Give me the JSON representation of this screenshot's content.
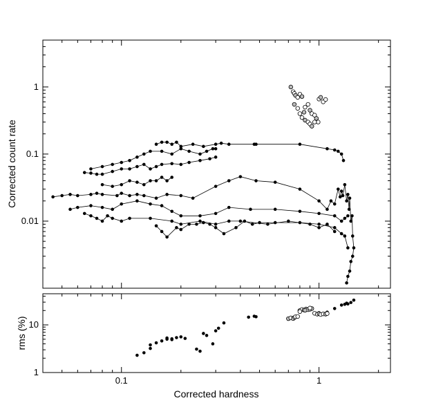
{
  "chart_data": [
    {
      "type": "scatter",
      "panel": "top",
      "xlabel": "Corrected hardness",
      "ylabel": "Corrected count rate",
      "x_scale": "log",
      "y_scale": "log",
      "xlim": [
        0.04,
        2.3
      ],
      "ylim": [
        0.001,
        5
      ],
      "y_tick_labels": [
        "1",
        "0.1",
        "0.01"
      ],
      "y_ticks": [
        1,
        0.1,
        0.01
      ],
      "x_ticks": [
        0.1,
        1
      ],
      "series": [
        {
          "style": "filled-line",
          "x": [
            0.045,
            0.05,
            0.055,
            0.06,
            0.07,
            0.075,
            0.08,
            0.095,
            0.1,
            0.11,
            0.12,
            0.13,
            0.15,
            0.17,
            0.2,
            0.23,
            0.3,
            0.35,
            0.4,
            0.48,
            0.6,
            0.8,
            1.0,
            1.1,
            1.15,
            1.2,
            1.25,
            1.28,
            1.3,
            1.32,
            1.35,
            1.38,
            1.4,
            1.42,
            1.43,
            1.45,
            1.47,
            1.48,
            1.5,
            1.48,
            1.45,
            1.43,
            1.4,
            1.38
          ],
          "y": [
            0.023,
            0.024,
            0.025,
            0.024,
            0.025,
            0.026,
            0.025,
            0.024,
            0.026,
            0.024,
            0.025,
            0.024,
            0.022,
            0.025,
            0.024,
            0.022,
            0.033,
            0.04,
            0.046,
            0.04,
            0.038,
            0.03,
            0.02,
            0.015,
            0.02,
            0.018,
            0.03,
            0.023,
            0.028,
            0.024,
            0.035,
            0.02,
            0.025,
            0.015,
            0.022,
            0.01,
            0.012,
            0.006,
            0.004,
            0.003,
            0.0025,
            0.0018,
            0.0015,
            0.0012
          ]
        },
        {
          "style": "filled-line",
          "x": [
            0.15,
            0.16,
            0.17,
            0.18,
            0.19,
            0.2,
            0.23,
            0.26,
            0.3,
            0.32,
            0.35,
            0.47,
            0.48,
            0.8,
            1.1,
            1.2,
            1.25,
            1.3,
            1.33
          ],
          "y": [
            0.14,
            0.15,
            0.15,
            0.14,
            0.15,
            0.13,
            0.14,
            0.13,
            0.14,
            0.145,
            0.14,
            0.14,
            0.14,
            0.14,
            0.12,
            0.115,
            0.11,
            0.1,
            0.08
          ]
        },
        {
          "style": "filled-line",
          "x": [
            0.07,
            0.08,
            0.09,
            0.1,
            0.11,
            0.12,
            0.13,
            0.14,
            0.16,
            0.18,
            0.2,
            0.22,
            0.25,
            0.27,
            0.29,
            0.3
          ],
          "y": [
            0.06,
            0.065,
            0.07,
            0.075,
            0.08,
            0.09,
            0.1,
            0.11,
            0.11,
            0.1,
            0.12,
            0.11,
            0.1,
            0.11,
            0.12,
            0.12
          ]
        },
        {
          "style": "filled-line",
          "x": [
            0.065,
            0.07,
            0.075,
            0.08,
            0.09,
            0.1,
            0.11,
            0.12,
            0.13,
            0.14,
            0.15,
            0.16,
            0.18,
            0.2,
            0.22,
            0.25,
            0.28,
            0.3
          ],
          "y": [
            0.053,
            0.052,
            0.05,
            0.05,
            0.055,
            0.06,
            0.06,
            0.065,
            0.07,
            0.06,
            0.065,
            0.07,
            0.072,
            0.07,
            0.075,
            0.08,
            0.085,
            0.09
          ]
        },
        {
          "style": "filled-line",
          "x": [
            0.08,
            0.09,
            0.1,
            0.11,
            0.12,
            0.13,
            0.14,
            0.15,
            0.16,
            0.17,
            0.18
          ],
          "y": [
            0.035,
            0.033,
            0.035,
            0.04,
            0.038,
            0.035,
            0.04,
            0.04,
            0.045,
            0.04,
            0.045
          ]
        },
        {
          "style": "filled-line",
          "x": [
            0.055,
            0.06,
            0.07,
            0.08,
            0.09,
            0.1,
            0.12,
            0.14,
            0.16,
            0.18,
            0.2,
            0.25,
            0.3,
            0.35,
            0.45,
            0.6,
            0.8,
            1.0,
            1.2,
            1.3,
            1.35,
            1.4
          ],
          "y": [
            0.015,
            0.016,
            0.017,
            0.016,
            0.015,
            0.018,
            0.02,
            0.018,
            0.017,
            0.014,
            0.012,
            0.012,
            0.013,
            0.016,
            0.015,
            0.015,
            0.014,
            0.013,
            0.012,
            0.01,
            0.011,
            0.012
          ]
        },
        {
          "style": "filled-line",
          "x": [
            0.065,
            0.07,
            0.075,
            0.08,
            0.085,
            0.09,
            0.1,
            0.11,
            0.14,
            0.18,
            0.2,
            0.25,
            0.3,
            0.35,
            0.4,
            0.55,
            0.7,
            0.9,
            1.0,
            1.1,
            1.2
          ],
          "y": [
            0.013,
            0.012,
            0.011,
            0.01,
            0.012,
            0.011,
            0.01,
            0.011,
            0.011,
            0.01,
            0.009,
            0.01,
            0.009,
            0.01,
            0.01,
            0.009,
            0.01,
            0.009,
            0.008,
            0.009,
            0.007
          ]
        },
        {
          "style": "filled-line",
          "x": [
            0.15,
            0.16,
            0.17,
            0.19,
            0.2,
            0.22,
            0.24,
            0.26,
            0.28,
            0.3,
            0.33,
            0.38,
            0.42,
            0.46,
            0.5,
            0.6,
            0.8,
            1.0,
            1.2,
            1.3,
            1.35,
            1.4
          ],
          "y": [
            0.0085,
            0.007,
            0.0058,
            0.008,
            0.0075,
            0.009,
            0.009,
            0.0095,
            0.009,
            0.008,
            0.0065,
            0.008,
            0.01,
            0.009,
            0.0095,
            0.0095,
            0.0095,
            0.009,
            0.008,
            0.0065,
            0.006,
            0.004
          ]
        },
        {
          "style": "open",
          "x": [
            0.72,
            0.74,
            0.75,
            0.76,
            0.78,
            0.8,
            0.82,
            0.85,
            0.88,
            0.9,
            0.92,
            0.95,
            0.97,
            0.99,
            1.0,
            1.02,
            1.05,
            1.08,
            0.75,
            0.8,
            0.82,
            0.85,
            0.88,
            0.9,
            0.92,
            0.95,
            0.78,
            0.84
          ],
          "y": [
            1.0,
            0.85,
            0.8,
            0.75,
            0.7,
            0.78,
            0.72,
            0.5,
            0.55,
            0.45,
            0.4,
            0.38,
            0.34,
            0.3,
            0.66,
            0.7,
            0.6,
            0.65,
            0.55,
            0.4,
            0.35,
            0.32,
            0.3,
            0.28,
            0.26,
            0.3,
            0.48,
            0.42
          ]
        }
      ]
    },
    {
      "type": "scatter",
      "panel": "bottom",
      "xlabel": "Corrected hardness",
      "ylabel": "rms (%)",
      "x_scale": "log",
      "y_scale": "log",
      "xlim": [
        0.04,
        2.3
      ],
      "ylim": [
        1,
        45
      ],
      "y_tick_labels": [
        "10",
        "1"
      ],
      "y_ticks": [
        10,
        1
      ],
      "x_tick_labels": [
        "0.1",
        "1"
      ],
      "x_ticks": [
        0.1,
        1
      ],
      "series": [
        {
          "style": "filled",
          "x": [
            0.12,
            0.13,
            0.14,
            0.14,
            0.15,
            0.16,
            0.17,
            0.17,
            0.18,
            0.18,
            0.19,
            0.2,
            0.21,
            0.24,
            0.25,
            0.26,
            0.27,
            0.29,
            0.3,
            0.31,
            0.33,
            0.44,
            0.47,
            0.48,
            0.95,
            1.0,
            1.05,
            1.1,
            1.2,
            1.3,
            1.35,
            1.38,
            1.4,
            1.45,
            1.5
          ],
          "y": [
            2.3,
            2.6,
            3.2,
            3.8,
            4.2,
            4.6,
            5.0,
            5.3,
            5.1,
            4.9,
            5.4,
            5.6,
            5.2,
            3.1,
            2.8,
            6.6,
            6.0,
            4.0,
            7.5,
            8.5,
            11.0,
            14.5,
            15.2,
            14.8,
            17.0,
            18.0,
            17.5,
            18.5,
            22.0,
            26.0,
            27.0,
            28.5,
            27.5,
            29.5,
            33.0
          ]
        },
        {
          "style": "open",
          "x": [
            0.7,
            0.72,
            0.74,
            0.75,
            0.76,
            0.78,
            0.8,
            0.82,
            0.84,
            0.86,
            0.88,
            0.9,
            0.92,
            0.95,
            0.98,
            1.0,
            1.02,
            1.05,
            1.08,
            1.1,
            0.8,
            0.85,
            0.9
          ],
          "y": [
            13.5,
            14.0,
            13.6,
            14.2,
            14.8,
            15.0,
            20.0,
            21.0,
            20.5,
            21.5,
            20.8,
            21.2,
            22.0,
            17.5,
            16.8,
            17.2,
            16.5,
            17.0,
            16.8,
            17.3,
            19.0,
            20.2,
            22.5
          ]
        }
      ]
    }
  ]
}
